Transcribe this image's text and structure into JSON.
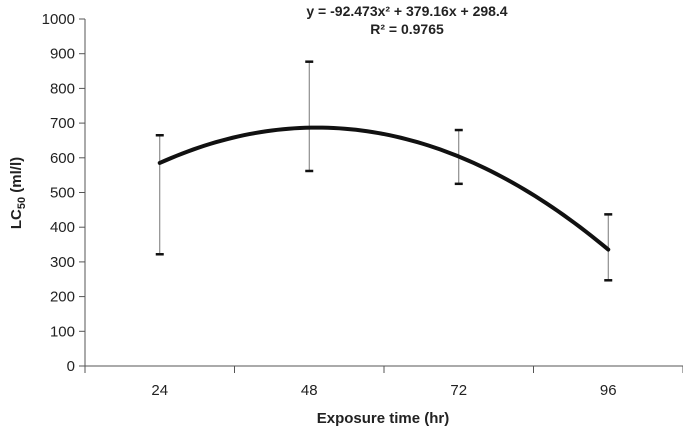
{
  "chart_data": {
    "type": "line",
    "title": "",
    "xlabel": "Exposure time (hr)",
    "ylabel": {
      "main": "LC",
      "sub": "50",
      "suffix": " (ml/l)"
    },
    "categories": [
      "24",
      "48",
      "72",
      "96"
    ],
    "ylim": [
      0,
      1000
    ],
    "yticks": [
      0,
      100,
      200,
      300,
      400,
      500,
      600,
      700,
      800,
      900,
      1000
    ],
    "trendline": {
      "equation": "y = -92.473x² + 379.16x + 298.4",
      "r_squared": "R² = 0.9765",
      "coefficients": {
        "a": -92.473,
        "b": 379.16,
        "c": 298.4
      },
      "x_domain": [
        1,
        4
      ]
    },
    "series": [
      {
        "values": [
          585,
          687,
          601,
          331
        ],
        "error_upper": [
          665,
          877,
          680,
          437
        ],
        "error_lower": [
          322,
          562,
          525,
          247
        ]
      }
    ],
    "grid": false,
    "legend": "none"
  },
  "colors": {
    "line": "#111111",
    "axis": "#555555",
    "error_bar": "#777777",
    "text": "#222222"
  }
}
